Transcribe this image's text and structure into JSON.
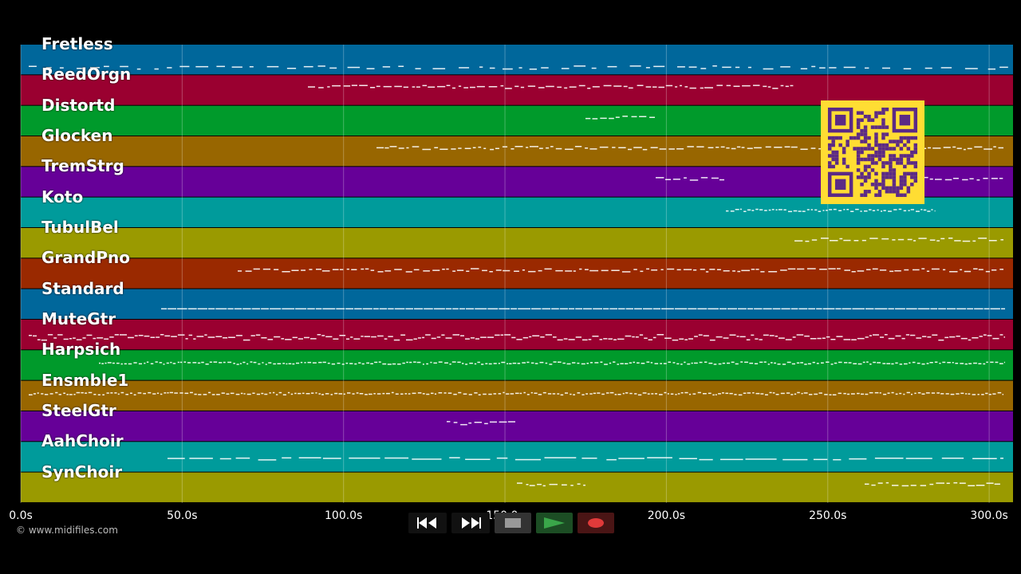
{
  "tracks": [
    {
      "name": "Fretless",
      "color": "#00679b"
    },
    {
      "name": "ReedOrgn",
      "color": "#9a0030"
    },
    {
      "name": "Distortd",
      "color": "#009a2b"
    },
    {
      "name": "Glocken",
      "color": "#986600"
    },
    {
      "name": "TremStrg",
      "color": "#660098"
    },
    {
      "name": "Koto",
      "color": "#009b9b"
    },
    {
      "name": "TubulBel",
      "color": "#9a9a00"
    },
    {
      "name": "GrandPno",
      "color": "#9a2900"
    },
    {
      "name": "Standard",
      "color": "#00679b"
    },
    {
      "name": "MuteGtr",
      "color": "#9a0030"
    },
    {
      "name": "Harpsich",
      "color": "#009a2b"
    },
    {
      "name": "Ensmble1",
      "color": "#986600"
    },
    {
      "name": "SteelGtr",
      "color": "#660098"
    },
    {
      "name": "AahChoir",
      "color": "#009b9b"
    },
    {
      "name": "SynChoir",
      "color": "#9a9a00"
    }
  ],
  "time_axis": {
    "ticks": [
      "0.0s",
      "50.0s",
      "100.0s",
      "150.0s",
      "200.0s",
      "250.0s",
      "300.0s"
    ]
  },
  "copyright": "© www.midifiles.com",
  "transport": {
    "rewind": "rewind-icon",
    "fast_forward": "fast-forward-icon",
    "stop": "stop-icon",
    "play": "play-icon",
    "record": "record-icon"
  },
  "colors": {
    "background": "#000000",
    "note": "#ffffff",
    "qr_fg": "#5b2a86",
    "qr_bg": "#ffdd33",
    "play": "#3aa64a",
    "record": "#e03a3a"
  }
}
